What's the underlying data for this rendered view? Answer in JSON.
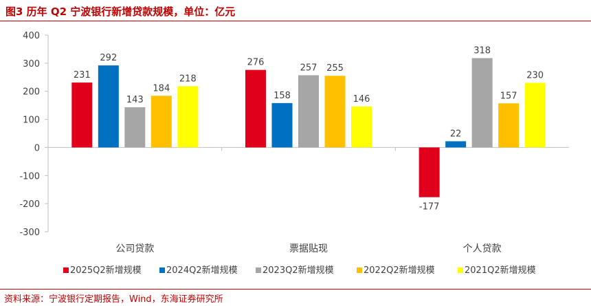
{
  "title": "图3  历年 Q2 宁波银行新增贷款规模，单位：亿元",
  "source": "资料来源：宁波银行定期报告，Wind，东海证券研究所",
  "chart_data": {
    "type": "bar",
    "categories": [
      "公司贷款",
      "票据贴现",
      "个人贷款"
    ],
    "series": [
      {
        "name": "2025Q2新增规模",
        "values": [
          231,
          276,
          -177
        ],
        "color": "#e0001b"
      },
      {
        "name": "2024Q2新增规模",
        "values": [
          292,
          158,
          22
        ],
        "color": "#0070c0"
      },
      {
        "name": "2023Q2新增规模",
        "values": [
          143,
          257,
          318
        ],
        "color": "#a6a6a6"
      },
      {
        "name": "2022Q2新增规模",
        "values": [
          184,
          255,
          157
        ],
        "color": "#ffc000"
      },
      {
        "name": "2021Q2新增规模",
        "values": [
          218,
          146,
          230
        ],
        "color": "#ffff00"
      }
    ],
    "ylim": [
      -300,
      400
    ],
    "yticks": [
      -300,
      -200,
      -100,
      0,
      100,
      200,
      300,
      400
    ],
    "ytick_labels": [
      "-300",
      "-200",
      "-100",
      "0",
      "100",
      "200",
      "300",
      "400"
    ],
    "legend_position": "bottom",
    "grid": false
  }
}
